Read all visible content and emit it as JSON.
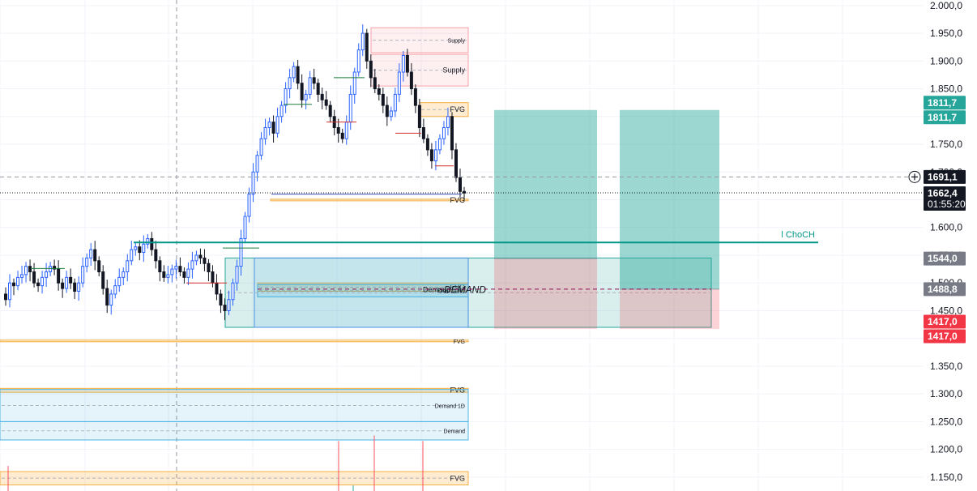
{
  "chart_data": {
    "type": "candlestick",
    "ylim": [
      1125,
      2010
    ],
    "y_ticks": [
      "1.150,0",
      "1.200,0",
      "1.250,0",
      "1.300,0",
      "1.350,0",
      "1.400,0",
      "1.450,0",
      "1.500,0",
      "1.550,0",
      "1.600,0",
      "1.650,0",
      "1.700,0",
      "1.750,0",
      "1.800,0",
      "1.850,0",
      "1.900,0",
      "1.950,0",
      "2.000,0"
    ],
    "y_tick_values": [
      1150,
      1200,
      1250,
      1300,
      1350,
      1400,
      1450,
      1500,
      1550,
      1600,
      1650,
      1700,
      1750,
      1800,
      1850,
      1900,
      1950,
      2000
    ],
    "grid": true,
    "price_path": [
      1480,
      1470,
      1500,
      1495,
      1510,
      1515,
      1530,
      1520,
      1500,
      1495,
      1510,
      1520,
      1530,
      1525,
      1500,
      1490,
      1510,
      1500,
      1485,
      1500,
      1530,
      1545,
      1560,
      1540,
      1520,
      1490,
      1460,
      1480,
      1495,
      1510,
      1520,
      1540,
      1560,
      1565,
      1555,
      1570,
      1580,
      1560,
      1540,
      1520,
      1510,
      1515,
      1525,
      1530,
      1520,
      1510,
      1525,
      1540,
      1550,
      1545,
      1535,
      1520,
      1500,
      1480,
      1460,
      1450,
      1470,
      1500,
      1530,
      1580,
      1620,
      1660,
      1700,
      1730,
      1760,
      1780,
      1790,
      1770,
      1800,
      1820,
      1850,
      1870,
      1890,
      1860,
      1830,
      1840,
      1870,
      1860,
      1840,
      1830,
      1820,
      1800,
      1780,
      1770,
      1760,
      1790,
      1840,
      1880,
      1920,
      1950,
      1900,
      1870,
      1850,
      1840,
      1820,
      1800,
      1810,
      1840,
      1880,
      1910,
      1880,
      1850,
      1820,
      1780,
      1760,
      1740,
      1720,
      1740,
      1760,
      1780,
      1800,
      1740,
      1690,
      1665,
      1662
    ],
    "series": [
      {
        "name": "",
        "values": []
      }
    ],
    "zones": [
      {
        "label": "Supply",
        "type": "supply",
        "y_top": 1960,
        "y_bottom": 1915
      },
      {
        "label": "Supply",
        "type": "supply",
        "y_top": 1912,
        "y_bottom": 1855
      },
      {
        "label": "FVG",
        "type": "fvg",
        "y_top": 1825,
        "y_bottom": 1800
      },
      {
        "label": "FVG",
        "type": "fvg",
        "y_top": 1651,
        "y_bottom": 1648
      },
      {
        "label": "FVG",
        "type": "fvg",
        "y_top": 1500,
        "y_bottom": 1485
      },
      {
        "label": "Demand",
        "type": "demand",
        "y_top": 1497,
        "y_bottom": 1475
      },
      {
        "label": "Demand",
        "type": "demand",
        "y_top": 1545,
        "y_bottom": 1420
      },
      {
        "label": "FVG",
        "type": "fvg",
        "y_top": 1397,
        "y_bottom": 1394
      },
      {
        "label": "FVG",
        "type": "fvg",
        "y_top": 1310,
        "y_bottom": 1303
      },
      {
        "label": "Demand 1D",
        "type": "demand",
        "y_top": 1308,
        "y_bottom": 1250
      },
      {
        "label": "Demand",
        "type": "demand",
        "y_top": 1250,
        "y_bottom": 1217
      },
      {
        "label": "FVG",
        "type": "fvg",
        "y_top": 1160,
        "y_bottom": 1136
      }
    ],
    "annotations": [
      {
        "text": "DEMAND",
        "y": 1488
      },
      {
        "text": "Demand",
        "y": 1488
      },
      {
        "text": "l ChoCH",
        "y": 1573
      }
    ],
    "positions": [
      {
        "entry": 1544.0,
        "target": 1811.7,
        "stop": 1417.0
      },
      {
        "entry": 1488.8,
        "target": 1811.7,
        "stop": 1417.0
      }
    ],
    "price_labels": [
      {
        "text": "1811,7",
        "value": 1811.7,
        "color": "#26a69a"
      },
      {
        "text": "1811,7",
        "value": 1811.7,
        "color": "#26a69a"
      },
      {
        "text": "1691,1",
        "value": 1691.1,
        "color": "#131722"
      },
      {
        "text": "1662,4",
        "value": 1662.4,
        "color": "#131722",
        "sub": "01:55:20"
      },
      {
        "text": "1544,0",
        "value": 1544.0,
        "color": "#787b86"
      },
      {
        "text": "1488,8",
        "value": 1488.8,
        "color": "#787b86"
      },
      {
        "text": "1417,0",
        "value": 1417.0,
        "color": "#f23645"
      },
      {
        "text": "1417,0",
        "value": 1417.0,
        "color": "#f23645"
      }
    ],
    "crosshair_price": 1691.1,
    "current_price": 1662.4,
    "countdown": "01:55:20"
  }
}
